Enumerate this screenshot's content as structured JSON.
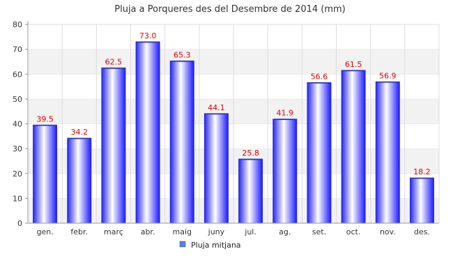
{
  "chart_data": {
    "type": "bar",
    "title": "Pluja a Porqueres des del Desembre de 2014 (mm)",
    "categories": [
      "gen.",
      "febr.",
      "març",
      "abr.",
      "maig",
      "juny",
      "jul.",
      "ag.",
      "set.",
      "oct.",
      "nov.",
      "des."
    ],
    "series": [
      {
        "name": "Pluja mitjana",
        "values": [
          39.5,
          34.2,
          62.5,
          73.0,
          65.3,
          44.1,
          25.8,
          41.9,
          56.6,
          61.5,
          56.9,
          18.2
        ]
      }
    ],
    "value_labels": [
      "39.5",
      "34.2",
      "62.5",
      "73.0",
      "65.3",
      "44.1",
      "25.8",
      "41.9",
      "56.6",
      "61.5",
      "56.9",
      "18.2"
    ],
    "ylim": [
      0,
      80
    ],
    "yticks": [
      "0",
      "10",
      "20",
      "30",
      "40",
      "50",
      "60",
      "70",
      "80"
    ],
    "grid": true,
    "legend_position": "bottom",
    "colors": {
      "bar_edge": "#1a1aff",
      "bar_center": "#ffffff",
      "bar_dark": "#3333ee",
      "data_label": "#e00000",
      "band_alt": "#f2f2f2",
      "legend_swatch": "#5b7fd6"
    }
  }
}
